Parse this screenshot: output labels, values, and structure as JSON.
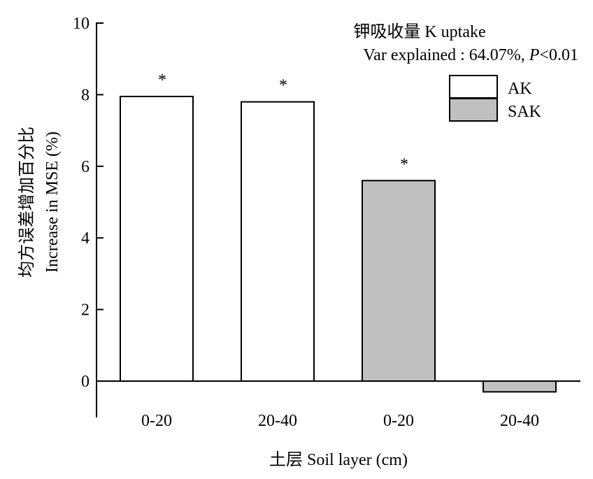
{
  "chart_data": {
    "type": "bar",
    "title_line1": "钾吸收量 K uptake",
    "title_line2_prefix": "Var explained : 64.07%, ",
    "title_line2_p": "P",
    "title_line2_suffix": "<0.01",
    "xlabel": "土层 Soil layer (cm)",
    "ylabel_cn": "均方误差增加百分比",
    "ylabel_en": "Increase in MSE (%)",
    "ylim": [
      -0.8,
      10
    ],
    "yticks": [
      0,
      2,
      4,
      6,
      8,
      10
    ],
    "legend": [
      {
        "name": "AK",
        "color": "#ffffff"
      },
      {
        "name": "SAK",
        "color": "#c0c0c0"
      }
    ],
    "bars": [
      {
        "category": "0-20",
        "series": "AK",
        "value": 7.95,
        "significant": "*"
      },
      {
        "category": "20-40",
        "series": "AK",
        "value": 7.8,
        "significant": "*"
      },
      {
        "category": "0-20",
        "series": "SAK",
        "value": 5.6,
        "significant": "*"
      },
      {
        "category": "20-40",
        "series": "SAK",
        "value": -0.3,
        "significant": ""
      }
    ]
  }
}
